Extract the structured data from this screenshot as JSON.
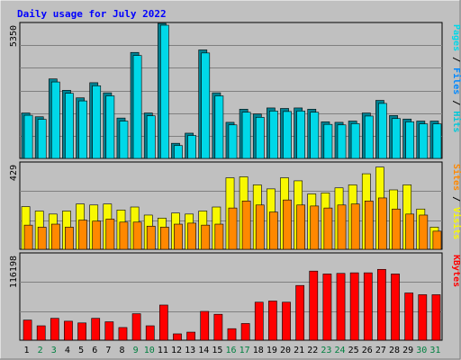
{
  "colors": {
    "background": "#c0c0c0",
    "title": "#0000ff",
    "hits": "#00c8d8",
    "files": "#0088ff",
    "pages": "#00d8e8",
    "visits": "#f8f800",
    "sites": "#ff8800",
    "kbytes": "#ff0000",
    "weekday_label": "#000000",
    "weekend_label": "#008040",
    "separator": "#000000"
  },
  "chart_data": {
    "type": "bar",
    "title": "Daily usage for July 2022",
    "x": [
      "1",
      "2",
      "3",
      "4",
      "5",
      "6",
      "7",
      "8",
      "9",
      "10",
      "11",
      "12",
      "13",
      "14",
      "15",
      "16",
      "17",
      "18",
      "19",
      "20",
      "21",
      "22",
      "23",
      "24",
      "25",
      "26",
      "27",
      "28",
      "29",
      "30",
      "31"
    ],
    "weekend_days": [
      "2",
      "3",
      "9",
      "10",
      "16",
      "17",
      "23",
      "24",
      "30",
      "31"
    ],
    "panels": [
      {
        "name": "hits-files-pages",
        "ymax_label": "5350",
        "ylim": [
          0,
          5350
        ],
        "series": [
          {
            "name": "Hits",
            "values": [
              1800,
              1650,
              3150,
              2700,
              2400,
              3000,
              2600,
              1600,
              4200,
              1800,
              5400,
              600,
              1000,
              4300,
              2600,
              1430,
              1950,
              1760,
              2000,
              1980,
              2000,
              1950,
              1450,
              1430,
              1480,
              1800,
              2300,
              1700,
              1560,
              1480,
              1480
            ]
          },
          {
            "name": "Files",
            "values": [
              1780,
              1620,
              3100,
              2650,
              2350,
              2950,
              2550,
              1550,
              4150,
              1760,
              5350,
              580,
              980,
              4250,
              2550,
              1400,
              1900,
              1700,
              1950,
              1930,
              1950,
              1900,
              1420,
              1400,
              1450,
              1750,
              2250,
              1650,
              1520,
              1440,
              1440
            ]
          }
        ],
        "labels": [
          {
            "text": "Pages",
            "color": "#00d8e8"
          },
          {
            "text": " / ",
            "color": "#000000"
          },
          {
            "text": "Files",
            "color": "#0088ff"
          },
          {
            "text": " / ",
            "color": "#000000"
          },
          {
            "text": "Hits",
            "color": "#00c8d8"
          }
        ]
      },
      {
        "name": "sites-visits",
        "ymax_label": "429",
        "ylim": [
          0,
          429
        ],
        "series": [
          {
            "name": "Visits",
            "values": [
              212,
              190,
              175,
              190,
              225,
              220,
              225,
              195,
              210,
              170,
              155,
              180,
              175,
              190,
              210,
              355,
              360,
              320,
              300,
              355,
              340,
              275,
              280,
              305,
              320,
              375,
              408,
              295,
              320,
              200,
              110
            ]
          },
          {
            "name": "Sites",
            "values": [
              120,
              110,
              125,
              110,
              145,
              140,
              150,
              135,
              135,
              115,
              110,
              125,
              130,
              120,
              125,
              205,
              240,
              220,
              185,
              245,
              220,
              215,
              205,
              220,
              225,
              240,
              255,
              200,
              175,
              170,
              90
            ]
          }
        ],
        "labels": [
          {
            "text": "Sites",
            "color": "#ff8800"
          },
          {
            "text": " / ",
            "color": "#000000"
          },
          {
            "text": "Visits",
            "color": "#f8f800"
          }
        ]
      },
      {
        "name": "kbytes",
        "ymax_label": "116198",
        "ylim": [
          0,
          150000
        ],
        "series": [
          {
            "name": "KBytes",
            "values": [
              35000,
              25000,
              38000,
              33000,
              30000,
              38000,
              32000,
              22000,
              46000,
              25000,
              61000,
              11000,
              14000,
              50000,
              45000,
              20000,
              29000,
              66000,
              68000,
              66000,
              95000,
              120000,
              115000,
              116000,
              117000,
              117000,
              123000,
              115000,
              82000,
              79000,
              79000
            ]
          }
        ],
        "labels": [
          {
            "text": "KBytes",
            "color": "#ff0000"
          }
        ]
      }
    ]
  }
}
